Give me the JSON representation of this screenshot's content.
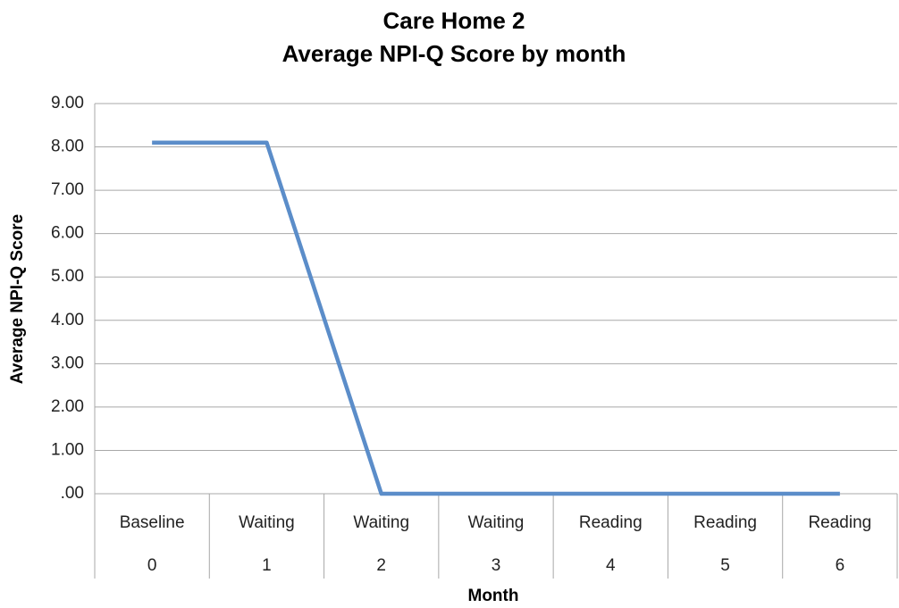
{
  "chart_data": {
    "type": "line",
    "title": "Care Home 2",
    "subtitle": "Average NPI-Q Score by month",
    "x_label": "Month",
    "y_label": "Average NPI-Q Score",
    "categories": [
      "Baseline",
      "Waiting",
      "Waiting",
      "Waiting",
      "Reading",
      "Reading",
      "Reading"
    ],
    "category_numbers": [
      0,
      1,
      2,
      3,
      4,
      5,
      6
    ],
    "series": [
      {
        "name": "Average NPI-Q Score",
        "color": "#5b8dc9",
        "values": [
          8.1,
          8.1,
          0,
          0,
          0,
          0,
          0
        ]
      }
    ],
    "ylim": [
      0,
      9
    ],
    "yticks": [
      {
        "value": 0,
        "label": ".00"
      },
      {
        "value": 1,
        "label": "1.00"
      },
      {
        "value": 2,
        "label": "2.00"
      },
      {
        "value": 3,
        "label": "3.00"
      },
      {
        "value": 4,
        "label": "4.00"
      },
      {
        "value": 5,
        "label": "5.00"
      },
      {
        "value": 6,
        "label": "6.00"
      },
      {
        "value": 7,
        "label": "7.00"
      },
      {
        "value": 8,
        "label": "8.00"
      },
      {
        "value": 9,
        "label": "9.00"
      }
    ],
    "grid": true
  }
}
